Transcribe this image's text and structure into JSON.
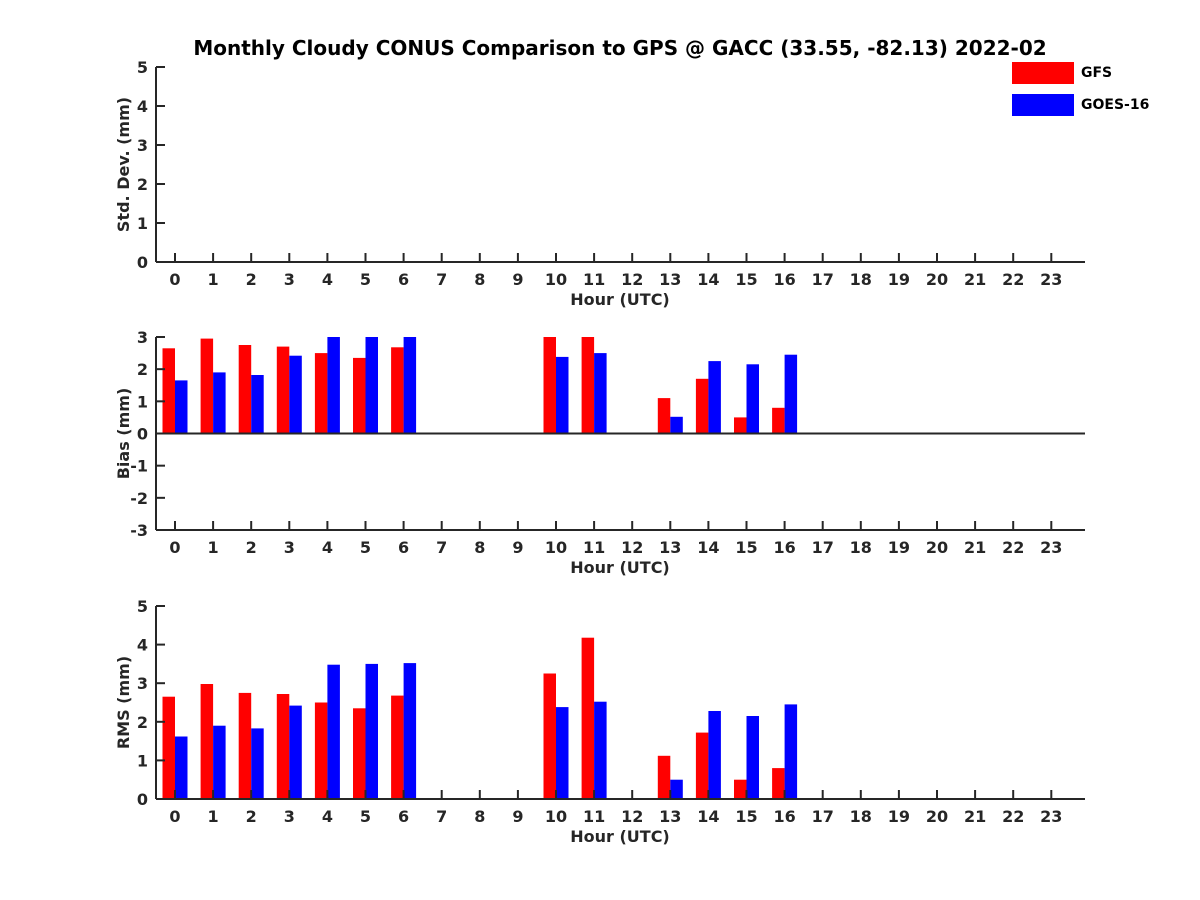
{
  "figure": {
    "title": "Monthly Cloudy CONUS Comparison to GPS @ GACC (33.55, -82.13) 2022-02"
  },
  "legend": [
    {
      "label": "GFS",
      "color": "#ff0000"
    },
    {
      "label": "GOES-16",
      "color": "#0000ff"
    }
  ],
  "chart_data": [
    {
      "type": "bar",
      "ylabel": "Std. Dev. (mm)",
      "xlabel": "Hour (UTC)",
      "ylim": [
        0,
        5
      ],
      "yticks": [
        0,
        1,
        2,
        3,
        4,
        5
      ],
      "categories": [
        "0",
        "1",
        "2",
        "3",
        "4",
        "5",
        "6",
        "7",
        "8",
        "9",
        "10",
        "11",
        "12",
        "13",
        "14",
        "15",
        "16",
        "17",
        "18",
        "19",
        "20",
        "21",
        "22",
        "23"
      ],
      "series": [
        {
          "name": "GFS",
          "color": "#ff0000",
          "values": [
            null,
            null,
            null,
            null,
            null,
            null,
            null,
            null,
            null,
            null,
            null,
            null,
            null,
            null,
            null,
            null,
            null,
            null,
            null,
            null,
            null,
            null,
            null,
            null
          ]
        },
        {
          "name": "GOES-16",
          "color": "#0000ff",
          "values": [
            null,
            null,
            null,
            null,
            null,
            null,
            null,
            null,
            null,
            null,
            null,
            null,
            null,
            null,
            null,
            null,
            null,
            null,
            null,
            null,
            null,
            null,
            null,
            null
          ]
        }
      ]
    },
    {
      "type": "bar",
      "ylabel": "Bias (mm)",
      "xlabel": "Hour (UTC)",
      "ylim": [
        -3,
        3
      ],
      "yticks": [
        -3,
        -2,
        -1,
        0,
        1,
        2,
        3
      ],
      "categories": [
        "0",
        "1",
        "2",
        "3",
        "4",
        "5",
        "6",
        "7",
        "8",
        "9",
        "10",
        "11",
        "12",
        "13",
        "14",
        "15",
        "16",
        "17",
        "18",
        "19",
        "20",
        "21",
        "22",
        "23"
      ],
      "series": [
        {
          "name": "GFS",
          "color": "#ff0000",
          "values": [
            2.65,
            2.95,
            2.75,
            2.7,
            2.5,
            2.35,
            2.68,
            null,
            null,
            null,
            3.0,
            3.0,
            null,
            1.1,
            1.7,
            0.5,
            0.8,
            null,
            null,
            null,
            null,
            null,
            null,
            null
          ]
        },
        {
          "name": "GOES-16",
          "color": "#0000ff",
          "values": [
            1.65,
            1.9,
            1.82,
            2.42,
            3.0,
            3.0,
            3.0,
            null,
            null,
            null,
            2.38,
            2.5,
            null,
            0.52,
            2.25,
            2.15,
            2.45,
            null,
            null,
            null,
            null,
            null,
            null,
            null
          ]
        }
      ]
    },
    {
      "type": "bar",
      "ylabel": "RMS (mm)",
      "xlabel": "Hour (UTC)",
      "ylim": [
        0,
        5
      ],
      "yticks": [
        0,
        1,
        2,
        3,
        4,
        5
      ],
      "categories": [
        "0",
        "1",
        "2",
        "3",
        "4",
        "5",
        "6",
        "7",
        "8",
        "9",
        "10",
        "11",
        "12",
        "13",
        "14",
        "15",
        "16",
        "17",
        "18",
        "19",
        "20",
        "21",
        "22",
        "23"
      ],
      "series": [
        {
          "name": "GFS",
          "color": "#ff0000",
          "values": [
            2.65,
            2.98,
            2.75,
            2.72,
            2.5,
            2.35,
            2.68,
            null,
            null,
            null,
            3.25,
            4.18,
            null,
            1.12,
            1.72,
            0.5,
            0.8,
            null,
            null,
            null,
            null,
            null,
            null,
            null
          ]
        },
        {
          "name": "GOES-16",
          "color": "#0000ff",
          "values": [
            1.62,
            1.9,
            1.83,
            2.42,
            3.48,
            3.5,
            3.52,
            null,
            null,
            null,
            2.38,
            2.52,
            null,
            0.5,
            2.28,
            2.15,
            2.45,
            null,
            null,
            null,
            null,
            null,
            null,
            null
          ]
        }
      ]
    }
  ]
}
